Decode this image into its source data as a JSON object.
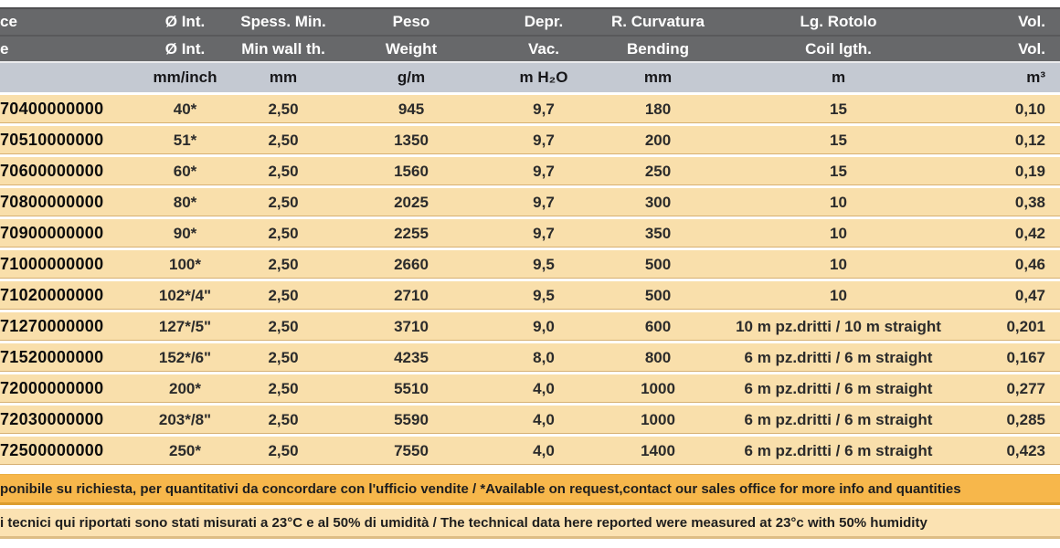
{
  "table": {
    "header_it": [
      "ce",
      "Ø Int.",
      "Spess. Min.",
      "Peso",
      "Depr.",
      "R. Curvatura",
      "Lg. Rotolo",
      "Vol."
    ],
    "header_en": [
      "e",
      "Ø Int.",
      "Min wall th.",
      "Weight",
      "Vac.",
      "Bending",
      "Coil lgth.",
      "Vol."
    ],
    "units": [
      "",
      "mm/inch",
      "mm",
      "g/m",
      "m H₂O",
      "mm",
      "m",
      "m³"
    ],
    "col_names": [
      "code",
      "inner-diameter",
      "min-wall-thickness",
      "weight",
      "vacuum",
      "bending-radius",
      "coil-length",
      "volume"
    ],
    "rows": [
      [
        "70400000000",
        "40*",
        "2,50",
        "945",
        "9,7",
        "180",
        "15",
        "0,10"
      ],
      [
        "70510000000",
        "51*",
        "2,50",
        "1350",
        "9,7",
        "200",
        "15",
        "0,12"
      ],
      [
        "70600000000",
        "60*",
        "2,50",
        "1560",
        "9,7",
        "250",
        "15",
        "0,19"
      ],
      [
        "70800000000",
        "80*",
        "2,50",
        "2025",
        "9,7",
        "300",
        "10",
        "0,38"
      ],
      [
        "70900000000",
        "90*",
        "2,50",
        "2255",
        "9,7",
        "350",
        "10",
        "0,42"
      ],
      [
        "71000000000",
        "100*",
        "2,50",
        "2660",
        "9,5",
        "500",
        "10",
        "0,46"
      ],
      [
        "71020000000",
        "102*/4\"",
        "2,50",
        "2710",
        "9,5",
        "500",
        "10",
        "0,47"
      ],
      [
        "71270000000",
        "127*/5\"",
        "2,50",
        "3710",
        "9,0",
        "600",
        "10 m pz.dritti / 10 m straight",
        "0,201"
      ],
      [
        "71520000000",
        "152*/6\"",
        "2,50",
        "4235",
        "8,0",
        "800",
        "6 m pz.dritti  / 6 m straight",
        "0,167"
      ],
      [
        "72000000000",
        "200*",
        "2,50",
        "5510",
        "4,0",
        "1000",
        "6 m pz.dritti  / 6 m straight",
        "0,277"
      ],
      [
        "72030000000",
        "203*/8\"",
        "2,50",
        "5590",
        "4,0",
        "1000",
        "6 m pz.dritti  / 6 m straight",
        "0,285"
      ],
      [
        "72500000000",
        "250*",
        "2,50",
        "7550",
        "4,0",
        "1400",
        "6 m pz.dritti  / 6 m straight",
        "0,423"
      ]
    ]
  },
  "notes": {
    "availability": "ponibile su richiesta, per quantitativi da concordare con l'ufficio vendite / *Available on request,contact our sales office for more info and quantities",
    "conditions": "i tecnici qui riportati sono stati misurati a 23°C e al 50% di umidità / The technical data here reported were measured at 23°c with 50% humidity"
  },
  "colors": {
    "header_bg": "#67686a",
    "units_bg": "#c4c9d2",
    "row_bg": "#f9dfab",
    "note1_bg": "#f7b74b",
    "note2_bg": "#fbe2b2"
  }
}
